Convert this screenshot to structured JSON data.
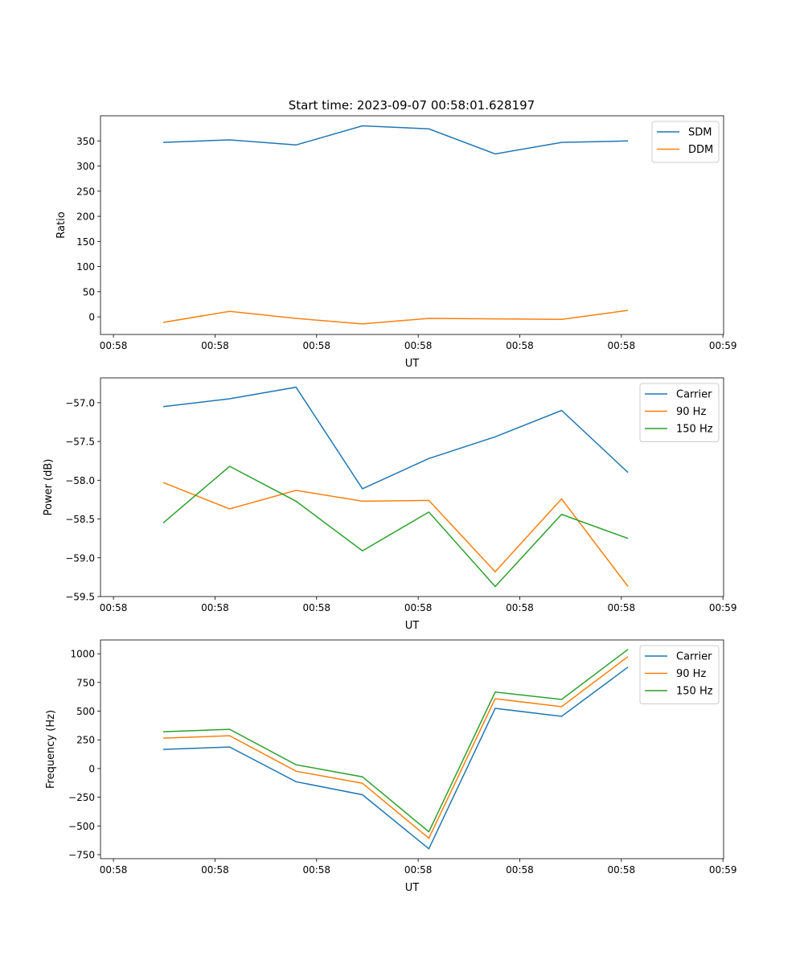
{
  "title": "Start time: 2023-09-07 00:58:01.628197",
  "colors": {
    "blue": "#1f77b4",
    "orange": "#ff7f0e",
    "green": "#2ca02c"
  },
  "chart_data": [
    {
      "type": "line",
      "xlabel": "UT",
      "ylabel": "Ratio",
      "x": [
        0,
        1,
        2,
        3,
        4,
        5,
        6,
        7
      ],
      "xlim": [
        -0.945,
        8.44
      ],
      "xticks": [
        -0.75,
        0.78,
        2.31,
        3.84,
        5.37,
        6.9,
        8.43
      ],
      "xtick_labels": [
        "00:58",
        "00:58",
        "00:58",
        "00:58",
        "00:58",
        "00:58",
        "00:59"
      ],
      "ylim": [
        -35,
        400
      ],
      "yticks": [
        0,
        50,
        100,
        150,
        200,
        250,
        300,
        350
      ],
      "ytick_labels": [
        "0",
        "50",
        "100",
        "150",
        "200",
        "250",
        "300",
        "350"
      ],
      "legend": "top-right",
      "series": [
        {
          "name": "SDM",
          "color": "#1f77b4",
          "values": [
            347,
            352,
            342,
            380,
            374,
            324,
            347,
            350
          ]
        },
        {
          "name": "DDM",
          "color": "#ff7f0e",
          "values": [
            -11,
            11,
            -3,
            -14,
            -3,
            -4,
            -5,
            13
          ]
        }
      ]
    },
    {
      "type": "line",
      "xlabel": "UT",
      "ylabel": "Power (dB)",
      "x": [
        0,
        1,
        2,
        3,
        4,
        5,
        6,
        7
      ],
      "xlim": [
        -0.945,
        8.44
      ],
      "xticks": [
        -0.75,
        0.78,
        2.31,
        3.84,
        5.37,
        6.9,
        8.43
      ],
      "xtick_labels": [
        "00:58",
        "00:58",
        "00:58",
        "00:58",
        "00:58",
        "00:58",
        "00:59"
      ],
      "ylim": [
        -59.5,
        -56.68
      ],
      "yticks": [
        -57.0,
        -57.5,
        -58.0,
        -58.5,
        -59.0,
        -59.5
      ],
      "ytick_labels": [
        "−57.0",
        "−57.5",
        "−58.0",
        "−58.5",
        "−59.0",
        "−59.5"
      ],
      "legend": "top-right",
      "series": [
        {
          "name": "Carrier",
          "color": "#1f77b4",
          "values": [
            -57.05,
            -56.95,
            -56.8,
            -58.11,
            -57.72,
            -57.44,
            -57.1,
            -57.9
          ]
        },
        {
          "name": "90 Hz",
          "color": "#ff7f0e",
          "values": [
            -58.03,
            -58.37,
            -58.13,
            -58.27,
            -58.26,
            -59.18,
            -58.24,
            -59.37
          ]
        },
        {
          "name": "150 Hz",
          "color": "#2ca02c",
          "values": [
            -58.55,
            -57.82,
            -58.27,
            -58.91,
            -58.41,
            -59.37,
            -58.44,
            -58.75
          ]
        }
      ]
    },
    {
      "type": "line",
      "xlabel": "UT",
      "ylabel": "Frequency (Hz)",
      "x": [
        0,
        1,
        2,
        3,
        4,
        5,
        6,
        7
      ],
      "xlim": [
        -0.945,
        8.44
      ],
      "xticks": [
        -0.75,
        0.78,
        2.31,
        3.84,
        5.37,
        6.9,
        8.43
      ],
      "xtick_labels": [
        "00:58",
        "00:58",
        "00:58",
        "00:58",
        "00:58",
        "00:58",
        "00:59"
      ],
      "ylim": [
        -785,
        1120
      ],
      "yticks": [
        1000,
        750,
        500,
        250,
        0,
        -250,
        -500,
        -750
      ],
      "ytick_labels": [
        "1000",
        "750",
        "500",
        "250",
        "0",
        "−250",
        "−500",
        "−750"
      ],
      "legend": "top-right",
      "series": [
        {
          "name": "Carrier",
          "color": "#1f77b4",
          "values": [
            167,
            188,
            -115,
            -228,
            -699,
            525,
            455,
            884
          ]
        },
        {
          "name": "90 Hz",
          "color": "#ff7f0e",
          "values": [
            265,
            286,
            -23,
            -128,
            -607,
            609,
            539,
            975
          ]
        },
        {
          "name": "150 Hz",
          "color": "#2ca02c",
          "values": [
            321,
            342,
            33,
            -72,
            -551,
            666,
            602,
            1038
          ]
        }
      ]
    }
  ]
}
